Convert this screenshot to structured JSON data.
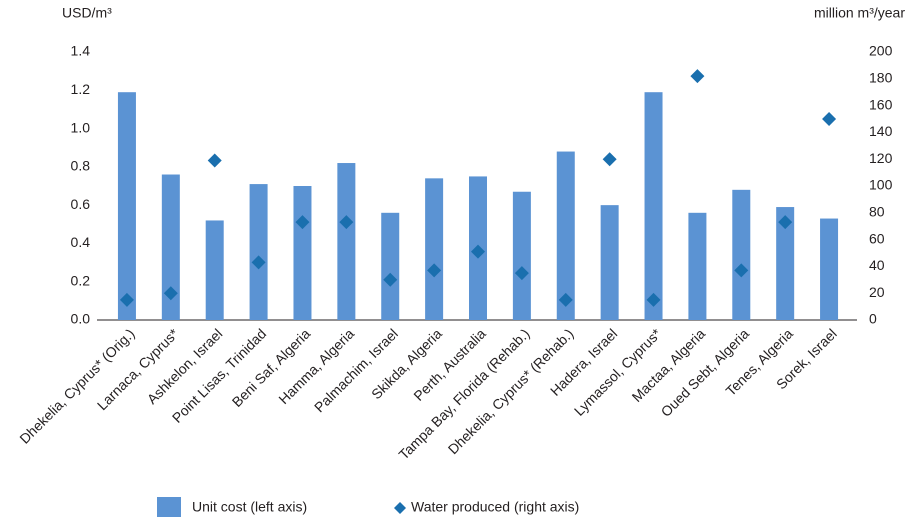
{
  "chart_data": {
    "type": "bar-diamond",
    "y_label": "USD/m³",
    "y2_label": "million m³/year",
    "categories": [
      "Dhekelia, Cyprus* (Orig.)",
      "Larnaca, Cyprus*",
      "Ashkelon, Israel",
      "Point Lisas, Trinidad",
      "Beni Saf, Algeria",
      "Hamma, Algeria",
      "Palmachim, Israel",
      "Skikda, Algeria",
      "Perth, Australia",
      "Tampa Bay, Florida (Rehab.)",
      "Dhekelia, Cyprus* (Rehab.)",
      "Hadera, Israel",
      "Lymassol, Cyprus*",
      "Mactaa, Algeria",
      "Oued Sebt, Algeria",
      "Tenes, Algeria",
      "Sorek, Israel"
    ],
    "series": [
      {
        "name": "Unit cost (left axis)",
        "color": "#5b93d3",
        "axis": "y",
        "values": [
          1.19,
          0.76,
          0.52,
          0.71,
          0.7,
          0.82,
          0.56,
          0.74,
          0.75,
          0.67,
          0.88,
          0.6,
          1.19,
          0.56,
          0.68,
          0.59,
          0.53
        ]
      },
      {
        "name": "Water produced (right axis)",
        "color": "#1a6fae",
        "axis": "y2",
        "values": [
          15,
          20,
          119,
          43,
          73,
          73,
          30,
          37,
          51,
          35,
          15,
          120,
          15,
          182,
          37,
          73,
          150
        ]
      }
    ],
    "ylim": [
      0,
      1.4
    ],
    "yticks": [
      {
        "value": 0,
        "label": "0.0"
      },
      0.2,
      0.4,
      0.6,
      0.8,
      {
        "value": 1,
        "label": "1.0"
      },
      1.2,
      1.4
    ],
    "y2lim": [
      0,
      200
    ],
    "y2ticks": [
      0,
      20,
      40,
      60,
      80,
      100,
      120,
      140,
      160,
      180,
      200
    ],
    "grid": false
  }
}
